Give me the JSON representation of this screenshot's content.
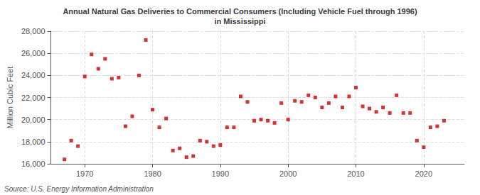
{
  "chart_data": {
    "type": "scatter",
    "title": "Annual Natural Gas Deliveries to Commercial Consumers (Including Vehicle Fuel through 1996)\nin Mississippi",
    "ylabel": "Million Cubic Feet",
    "source": "Source: U.S. Energy Information Administration",
    "color": "#cc0000",
    "marker": "square",
    "x": [
      1967,
      1968,
      1969,
      1970,
      1971,
      1972,
      1973,
      1974,
      1975,
      1976,
      1977,
      1978,
      1979,
      1980,
      1981,
      1982,
      1983,
      1984,
      1985,
      1986,
      1987,
      1988,
      1989,
      1990,
      1991,
      1992,
      1993,
      1994,
      1995,
      1996,
      1997,
      1998,
      1999,
      2000,
      2001,
      2002,
      2003,
      2004,
      2005,
      2006,
      2007,
      2008,
      2009,
      2010,
      2011,
      2012,
      2013,
      2014,
      2015,
      2016,
      2017,
      2018,
      2019,
      2020,
      2021,
      2022,
      2023
    ],
    "values": [
      16400,
      18100,
      17600,
      23900,
      25900,
      24600,
      25500,
      23700,
      23800,
      19400,
      20300,
      24000,
      27200,
      20900,
      19300,
      20100,
      17200,
      17400,
      16600,
      16700,
      18100,
      18000,
      17600,
      17700,
      19300,
      19300,
      22100,
      21600,
      19900,
      20000,
      19900,
      19700,
      21500,
      20000,
      21700,
      21600,
      22200,
      22000,
      21100,
      21500,
      22100,
      21100,
      22100,
      22900,
      21200,
      21000,
      20700,
      21100,
      20600,
      22200,
      20600,
      20600,
      18100,
      17500,
      19300,
      19400,
      19900
    ],
    "xlim": [
      1965,
      2026
    ],
    "xticks": [
      1970,
      1980,
      1990,
      2000,
      2010,
      2020
    ],
    "ylim": [
      16000,
      28000
    ],
    "yticks": [
      {
        "value": 16000,
        "label": "16,000"
      },
      {
        "value": 18000,
        "label": "18,000"
      },
      {
        "value": 20000,
        "label": "20,000"
      },
      {
        "value": 22000,
        "label": "22,000"
      },
      {
        "value": 24000,
        "label": "24,000"
      },
      {
        "value": 26000,
        "label": "26,000"
      },
      {
        "value": 28000,
        "label": "28,000"
      }
    ],
    "grid": true
  }
}
